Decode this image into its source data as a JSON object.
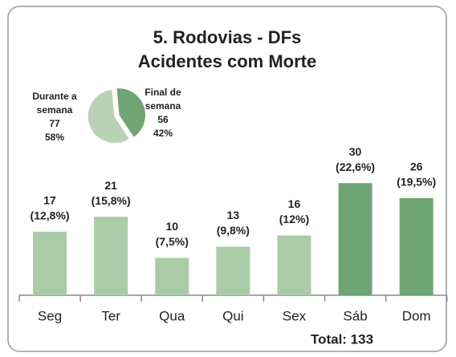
{
  "chart_data": {
    "type": "bar",
    "title": [
      "5. Rodovias - DFs",
      "Acidentes com Morte"
    ],
    "categories": [
      "Seg",
      "Ter",
      "Qua",
      "Qui",
      "Sex",
      "Sáb",
      "Dom"
    ],
    "values": [
      17,
      21,
      10,
      13,
      16,
      30,
      26
    ],
    "percent_labels": [
      "(12,8%)",
      "(15,8%)",
      "(7,5%)",
      "(9,8%)",
      "(12%)",
      "(22,6%)",
      "(19,5%)"
    ],
    "colors": [
      "#a9cca6",
      "#a9cca6",
      "#a9cca6",
      "#a9cca6",
      "#a9cca6",
      "#6fa572",
      "#6fa572"
    ],
    "ylim": [
      0,
      35
    ],
    "total": "Total: 133",
    "pie": {
      "type": "pie",
      "labels": [
        [
          "Durante a",
          "semana"
        ],
        [
          "Final de",
          "semana"
        ]
      ],
      "values": [
        77,
        56
      ],
      "percent_labels": [
        "58%",
        "42%"
      ],
      "colors": [
        "#b7d3b3",
        "#6fa572"
      ]
    }
  }
}
